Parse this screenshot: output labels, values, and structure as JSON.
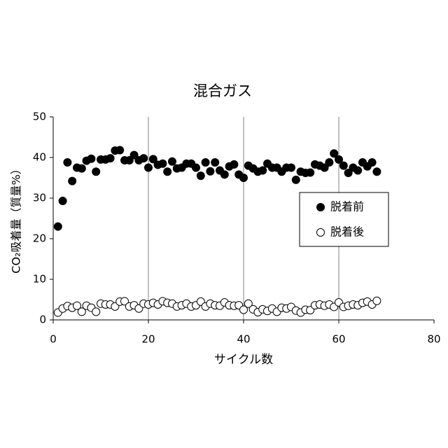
{
  "chart_data": {
    "type": "scatter",
    "title": "混合ガス",
    "x_label": "サイクル数",
    "y_label": "CO₂吸着量（質量%）",
    "x": [
      1,
      2,
      3,
      4,
      5,
      6,
      7,
      8,
      9,
      10,
      11,
      12,
      13,
      14,
      15,
      16,
      17,
      18,
      19,
      20,
      21,
      22,
      23,
      24,
      25,
      26,
      27,
      28,
      29,
      30,
      31,
      32,
      33,
      34,
      35,
      36,
      37,
      38,
      39,
      40,
      41,
      42,
      43,
      44,
      45,
      46,
      47,
      48,
      49,
      50,
      51,
      52,
      53,
      54,
      55,
      56,
      57,
      58,
      59,
      60,
      61,
      62,
      63,
      64,
      65,
      66,
      67,
      68
    ],
    "series": [
      {
        "name": "脱着前",
        "color": "#000000",
        "filled": true,
        "values": [
          23.0,
          29.3,
          38.8,
          34.2,
          37.5,
          37.3,
          39.2,
          39.7,
          36.5,
          39.5,
          39.5,
          39.8,
          41.7,
          41.8,
          39.3,
          39.3,
          40.6,
          39.3,
          39.8,
          37.5,
          39.6,
          38.2,
          38.5,
          36.5,
          39.0,
          37.3,
          37.5,
          38.5,
          38.5,
          37.5,
          35.5,
          38.8,
          36.6,
          38.8,
          36.8,
          35.8,
          37.8,
          38.3,
          35.8,
          35.0,
          38.0,
          37.3,
          36.5,
          36.8,
          38.5,
          37.5,
          37.5,
          36.5,
          37.5,
          37.5,
          34.5,
          36.5,
          36.2,
          36.3,
          38.3,
          38.0,
          37.5,
          38.8,
          41.0,
          39.5,
          38.0,
          36.2,
          37.5,
          36.8,
          38.8,
          37.8,
          38.8,
          36.5
        ]
      },
      {
        "name": "脱着後",
        "color": "#000000",
        "filled": false,
        "values": [
          1.8,
          2.8,
          3.4,
          3.0,
          3.5,
          2.0,
          3.5,
          3.0,
          2.0,
          4.0,
          3.8,
          3.8,
          3.3,
          4.5,
          4.6,
          3.3,
          3.6,
          2.8,
          4.0,
          3.8,
          4.2,
          3.8,
          4.6,
          4.2,
          4.0,
          3.3,
          3.6,
          4.0,
          3.3,
          3.6,
          4.5,
          3.3,
          4.0,
          3.6,
          3.5,
          4.3,
          3.6,
          3.5,
          3.6,
          2.5,
          4.0,
          2.6,
          1.9,
          2.6,
          2.2,
          2.8,
          2.0,
          3.0,
          2.8,
          3.2,
          2.3,
          1.8,
          2.5,
          2.4,
          3.6,
          3.8,
          3.5,
          3.8,
          3.2,
          4.3,
          3.2,
          3.5,
          3.8,
          3.6,
          4.2,
          4.5,
          3.8,
          4.7
        ]
      }
    ],
    "xlim": [
      0,
      80
    ],
    "xticks": [
      0,
      20,
      40,
      60,
      80
    ],
    "ylim": [
      0,
      50
    ],
    "yticks": [
      0,
      10,
      20,
      30,
      40,
      50
    ],
    "x_grid": true
  }
}
